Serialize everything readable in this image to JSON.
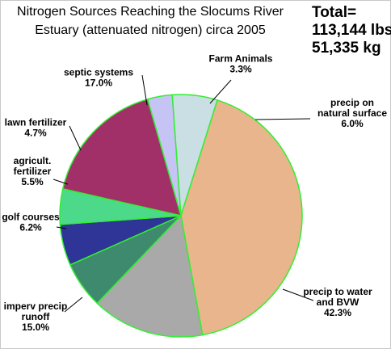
{
  "chart_data": {
    "type": "pie",
    "title": "Nitrogen Sources Reaching the Slocums River Estuary  (attenuated nitrogen) circa 2005",
    "title_lines": [
      "Nitrogen Sources Reaching the Slocums River",
      "Estuary  (attenuated nitrogen) circa 2005"
    ],
    "annotation": {
      "label": "Total=",
      "lbs": "113,144 lbs",
      "kg": "51,335 kg"
    },
    "legend": "none",
    "slices": [
      {
        "label_lines": [
          "Farm Animals"
        ],
        "value": 3.3,
        "value_label": "3.3%",
        "color": "#c6c3f5"
      },
      {
        "label_lines": [
          "precip on",
          "natural surface"
        ],
        "value": 6.0,
        "value_label": "6.0%",
        "color": "#c9dfe3"
      },
      {
        "label_lines": [
          "precip to water",
          "and BVW"
        ],
        "value": 42.3,
        "value_label": "42.3%",
        "color": "#e9b58c"
      },
      {
        "label_lines": [
          "imperv precip",
          "runoff"
        ],
        "value": 15.0,
        "value_label": "15.0%",
        "color": "#a9a9a9"
      },
      {
        "label_lines": [
          "golf courses"
        ],
        "value": 6.2,
        "value_label": "6.2%",
        "color": "#3d8a6e"
      },
      {
        "label_lines": [
          "agricult.",
          "fertilizer"
        ],
        "value": 5.5,
        "value_label": "5.5%",
        "color": "#2e3597"
      },
      {
        "label_lines": [
          "lawn fertilizer"
        ],
        "value": 4.7,
        "value_label": "4.7%",
        "color": "#4dd98a"
      },
      {
        "label_lines": [
          "septic systems"
        ],
        "value": 17.0,
        "value_label": "17.0%",
        "color": "#a23068"
      }
    ],
    "slice_border_color": "#33ee33",
    "leader_line_color": "#000000"
  }
}
